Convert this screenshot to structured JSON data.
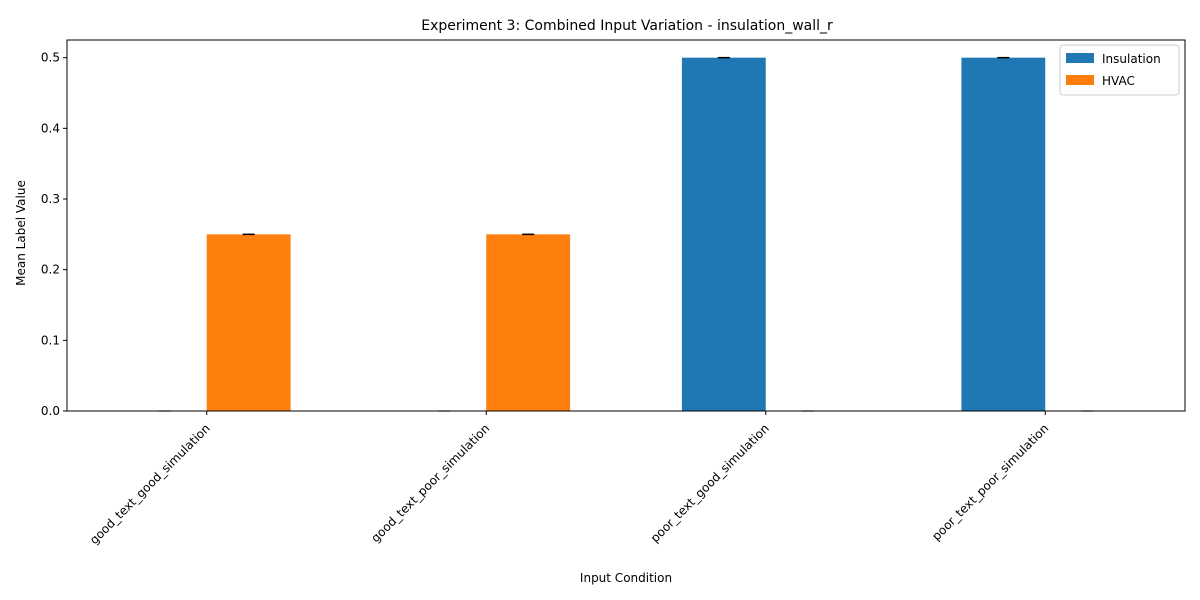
{
  "chart_data": {
    "type": "bar",
    "title": "Experiment 3: Combined Input Variation - insulation_wall_r",
    "xlabel": "Input Condition",
    "ylabel": "Mean Label Value",
    "categories": [
      "good_text_good_simulation",
      "good_text_poor_simulation",
      "poor_text_good_simulation",
      "poor_text_poor_simulation"
    ],
    "series": [
      {
        "name": "Insulation",
        "color": "#1f77b4",
        "values": [
          0.0,
          0.0,
          0.5,
          0.5
        ],
        "errors": [
          0,
          0,
          0,
          0
        ]
      },
      {
        "name": "HVAC",
        "color": "#ff7f0e",
        "values": [
          0.25,
          0.25,
          0.0,
          0.0
        ],
        "errors": [
          0,
          0,
          0,
          0
        ]
      }
    ],
    "ylim": [
      0,
      0.525
    ],
    "yticks": [
      0.0,
      0.1,
      0.2,
      0.3,
      0.4,
      0.5
    ],
    "ytick_labels": [
      "0.0",
      "0.1",
      "0.2",
      "0.3",
      "0.4",
      "0.5"
    ],
    "xtick_rotation": 45,
    "grid": false,
    "legend_position": "top-right"
  }
}
